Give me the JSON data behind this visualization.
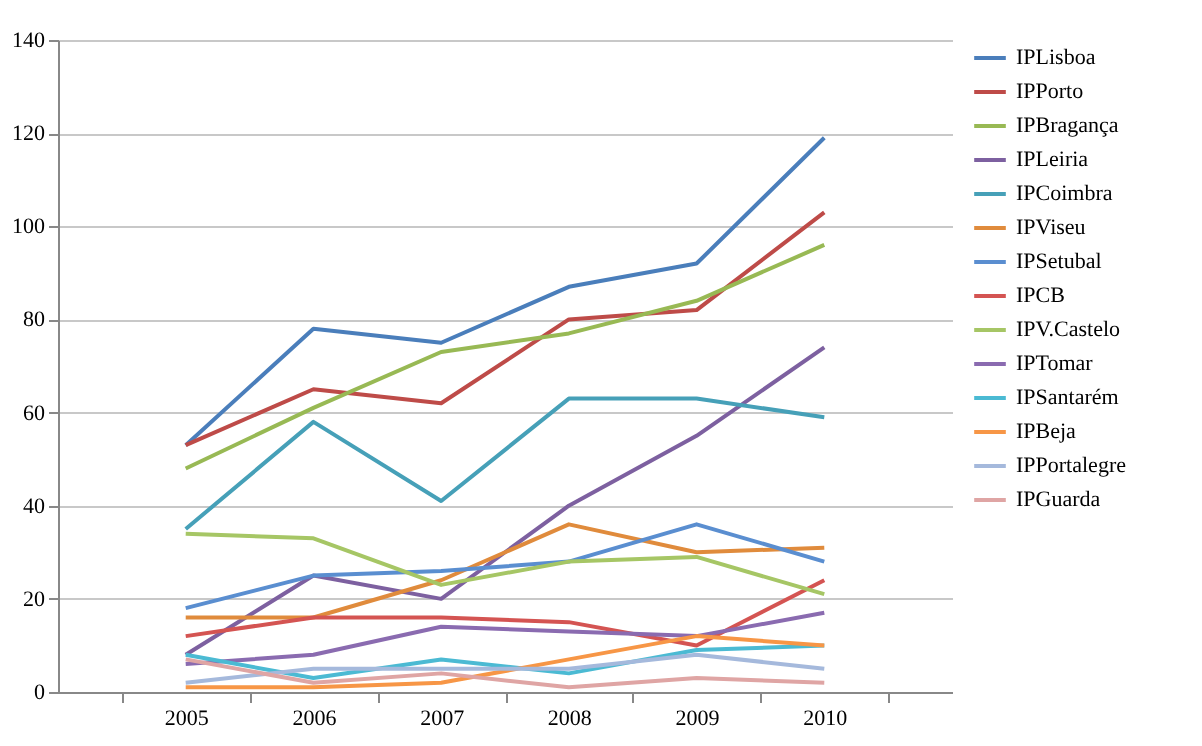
{
  "chart_data": {
    "type": "line",
    "categories": [
      "2005",
      "2006",
      "2007",
      "2008",
      "2009",
      "2010"
    ],
    "ylim": [
      0,
      140
    ],
    "yticks": [
      0,
      20,
      40,
      60,
      80,
      100,
      120,
      140
    ],
    "grid": "y",
    "legend": "right",
    "marker": "none",
    "line_style": "solid",
    "series": [
      {
        "name": "IPLisboa",
        "color": "#4a7ebb",
        "values": [
          53,
          78,
          75,
          87,
          92,
          119
        ]
      },
      {
        "name": "IPPorto",
        "color": "#be4b48",
        "values": [
          53,
          65,
          62,
          80,
          82,
          103
        ]
      },
      {
        "name": "IPBragança",
        "color": "#98b954",
        "values": [
          48,
          61,
          73,
          77,
          84,
          96
        ]
      },
      {
        "name": "IPLeiria",
        "color": "#7d60a0",
        "values": [
          8,
          25,
          20,
          40,
          55,
          74
        ]
      },
      {
        "name": "IPCoimbra",
        "color": "#46a0b8",
        "values": [
          35,
          58,
          41,
          63,
          63,
          59
        ]
      },
      {
        "name": "IPViseu",
        "color": "#e08b3c",
        "values": [
          16,
          16,
          24,
          36,
          30,
          31
        ]
      },
      {
        "name": "IPSetubal",
        "color": "#5a8ed0",
        "values": [
          18,
          25,
          26,
          28,
          36,
          28
        ]
      },
      {
        "name": "IPCB",
        "color": "#d45452",
        "values": [
          12,
          16,
          16,
          15,
          10,
          24
        ]
      },
      {
        "name": "IPV.Castelo",
        "color": "#a6c665",
        "values": [
          34,
          33,
          23,
          28,
          29,
          21
        ]
      },
      {
        "name": "IPTomar",
        "color": "#8a6bb0",
        "values": [
          6,
          8,
          14,
          13,
          12,
          17
        ]
      },
      {
        "name": "IPSantarém",
        "color": "#4bbad3",
        "values": [
          8,
          3,
          7,
          4,
          9,
          10
        ]
      },
      {
        "name": "IPBeja",
        "color": "#f79646",
        "values": [
          1,
          1,
          2,
          7,
          12,
          10
        ]
      },
      {
        "name": "IPPortalegre",
        "color": "#a5b9dc",
        "values": [
          2,
          5,
          5,
          5,
          8,
          5
        ]
      },
      {
        "name": "IPGuarda",
        "color": "#dfa5a4",
        "values": [
          7,
          2,
          4,
          1,
          3,
          2
        ]
      }
    ]
  }
}
